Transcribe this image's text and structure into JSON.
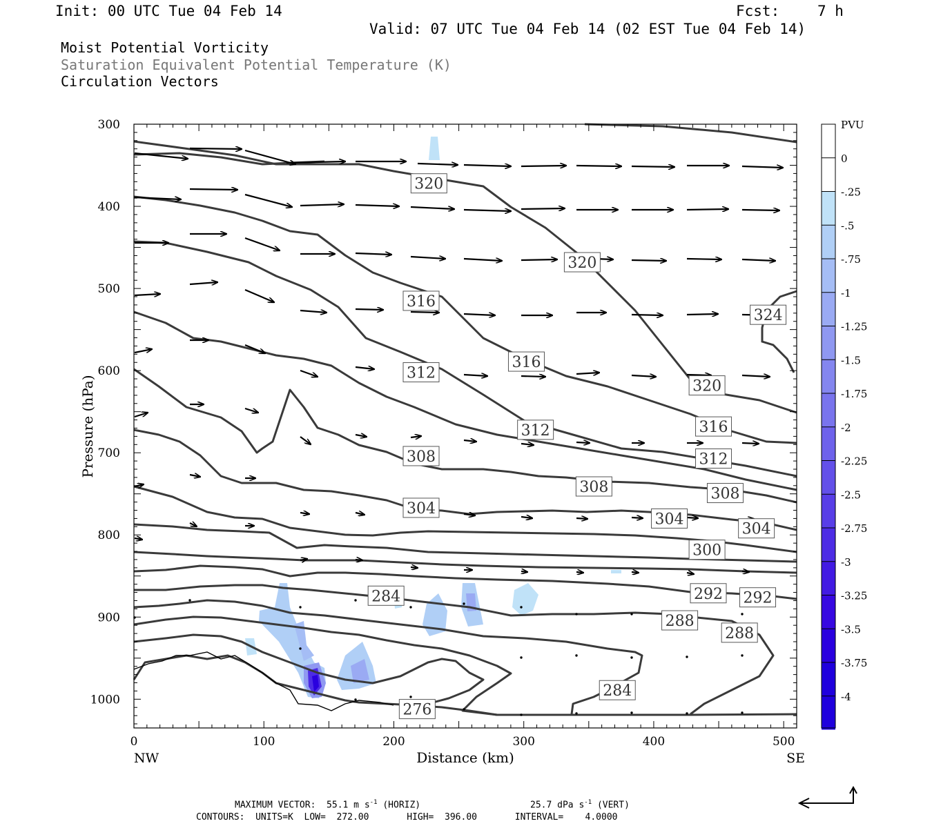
{
  "header": {
    "init": "Init: 00 UTC Tue 04 Feb 14",
    "fcst_label": "Fcst:",
    "fcst_value": "7 h",
    "valid": "Valid: 07 UTC Tue 04 Feb 14 (02 EST Tue 04 Feb 14)"
  },
  "fields": {
    "line1": "Moist Potential Vorticity",
    "line2": "Saturation Equivalent Potential Temperature (K)",
    "line3": "Circulation Vectors"
  },
  "footer": {
    "max_vector": "MAXIMUM VECTOR:  55.1 m s",
    "max_vector_exp": "-1",
    "horiz": " (HORIZ)",
    "vert_value": "25.7 dPa s",
    "vert_exp": "-1",
    "vert": " (VERT)",
    "contours": "CONTOURS:  UNITS=K  LOW=  272.00       HIGH=  396.00       INTERVAL=    4.0000"
  },
  "colors": {
    "contour": "#3a3a3a",
    "pv_ramp": [
      "#ffffff",
      "#ffffff",
      "#c0e2f8",
      "#b0cff6",
      "#a5bdf5",
      "#9aaaf3",
      "#8f98f1",
      "#8486ef",
      "#7974ed",
      "#6e62eb",
      "#6350e9",
      "#583ee7",
      "#4d2ce5",
      "#421ae3",
      "#3708e1",
      "#2a00df",
      "#1f00dd"
    ]
  },
  "chart_data": {
    "type": "cross-section",
    "xlabel": "Distance (km)",
    "ylabel": "Pressure (hPa)",
    "xlim": [
      0,
      510
    ],
    "ylim": [
      1035,
      300
    ],
    "x_ticks": [
      0,
      100,
      200,
      300,
      400,
      500
    ],
    "y_ticks": [
      300,
      400,
      500,
      600,
      700,
      800,
      900,
      1000
    ],
    "x_end_labels": [
      "NW",
      "SE"
    ],
    "colorbar": {
      "title": "PVU",
      "labels": [
        "0",
        "-.25",
        "-.5",
        "-.75",
        "-1",
        "-1.25",
        "-1.5",
        "-1.75",
        "-2",
        "-2.25",
        "-2.5",
        "-2.75",
        "-3",
        "-3.25",
        "-3.5",
        "-3.75",
        "-4"
      ]
    },
    "contour_labels": [
      {
        "text": "320",
        "x": 227,
        "p": 372
      },
      {
        "text": "320",
        "x": 345,
        "p": 468
      },
      {
        "text": "324",
        "x": 488,
        "p": 532
      },
      {
        "text": "316",
        "x": 221,
        "p": 515
      },
      {
        "text": "316",
        "x": 302,
        "p": 589
      },
      {
        "text": "320",
        "x": 441,
        "p": 618
      },
      {
        "text": "312",
        "x": 221,
        "p": 602
      },
      {
        "text": "316",
        "x": 446,
        "p": 668
      },
      {
        "text": "312",
        "x": 309,
        "p": 672
      },
      {
        "text": "312",
        "x": 446,
        "p": 707
      },
      {
        "text": "308",
        "x": 221,
        "p": 704
      },
      {
        "text": "308",
        "x": 354,
        "p": 741
      },
      {
        "text": "308",
        "x": 455,
        "p": 749
      },
      {
        "text": "304",
        "x": 221,
        "p": 767
      },
      {
        "text": "304",
        "x": 412,
        "p": 780
      },
      {
        "text": "304",
        "x": 479,
        "p": 792
      },
      {
        "text": "300",
        "x": 441,
        "p": 818
      },
      {
        "text": "292",
        "x": 442,
        "p": 871
      },
      {
        "text": "292",
        "x": 480,
        "p": 876
      },
      {
        "text": "284",
        "x": 194,
        "p": 874
      },
      {
        "text": "288",
        "x": 420,
        "p": 904
      },
      {
        "text": "288",
        "x": 466,
        "p": 919
      },
      {
        "text": "284",
        "x": 372,
        "p": 989
      },
      {
        "text": "276",
        "x": 218,
        "p": 1012
      }
    ]
  }
}
